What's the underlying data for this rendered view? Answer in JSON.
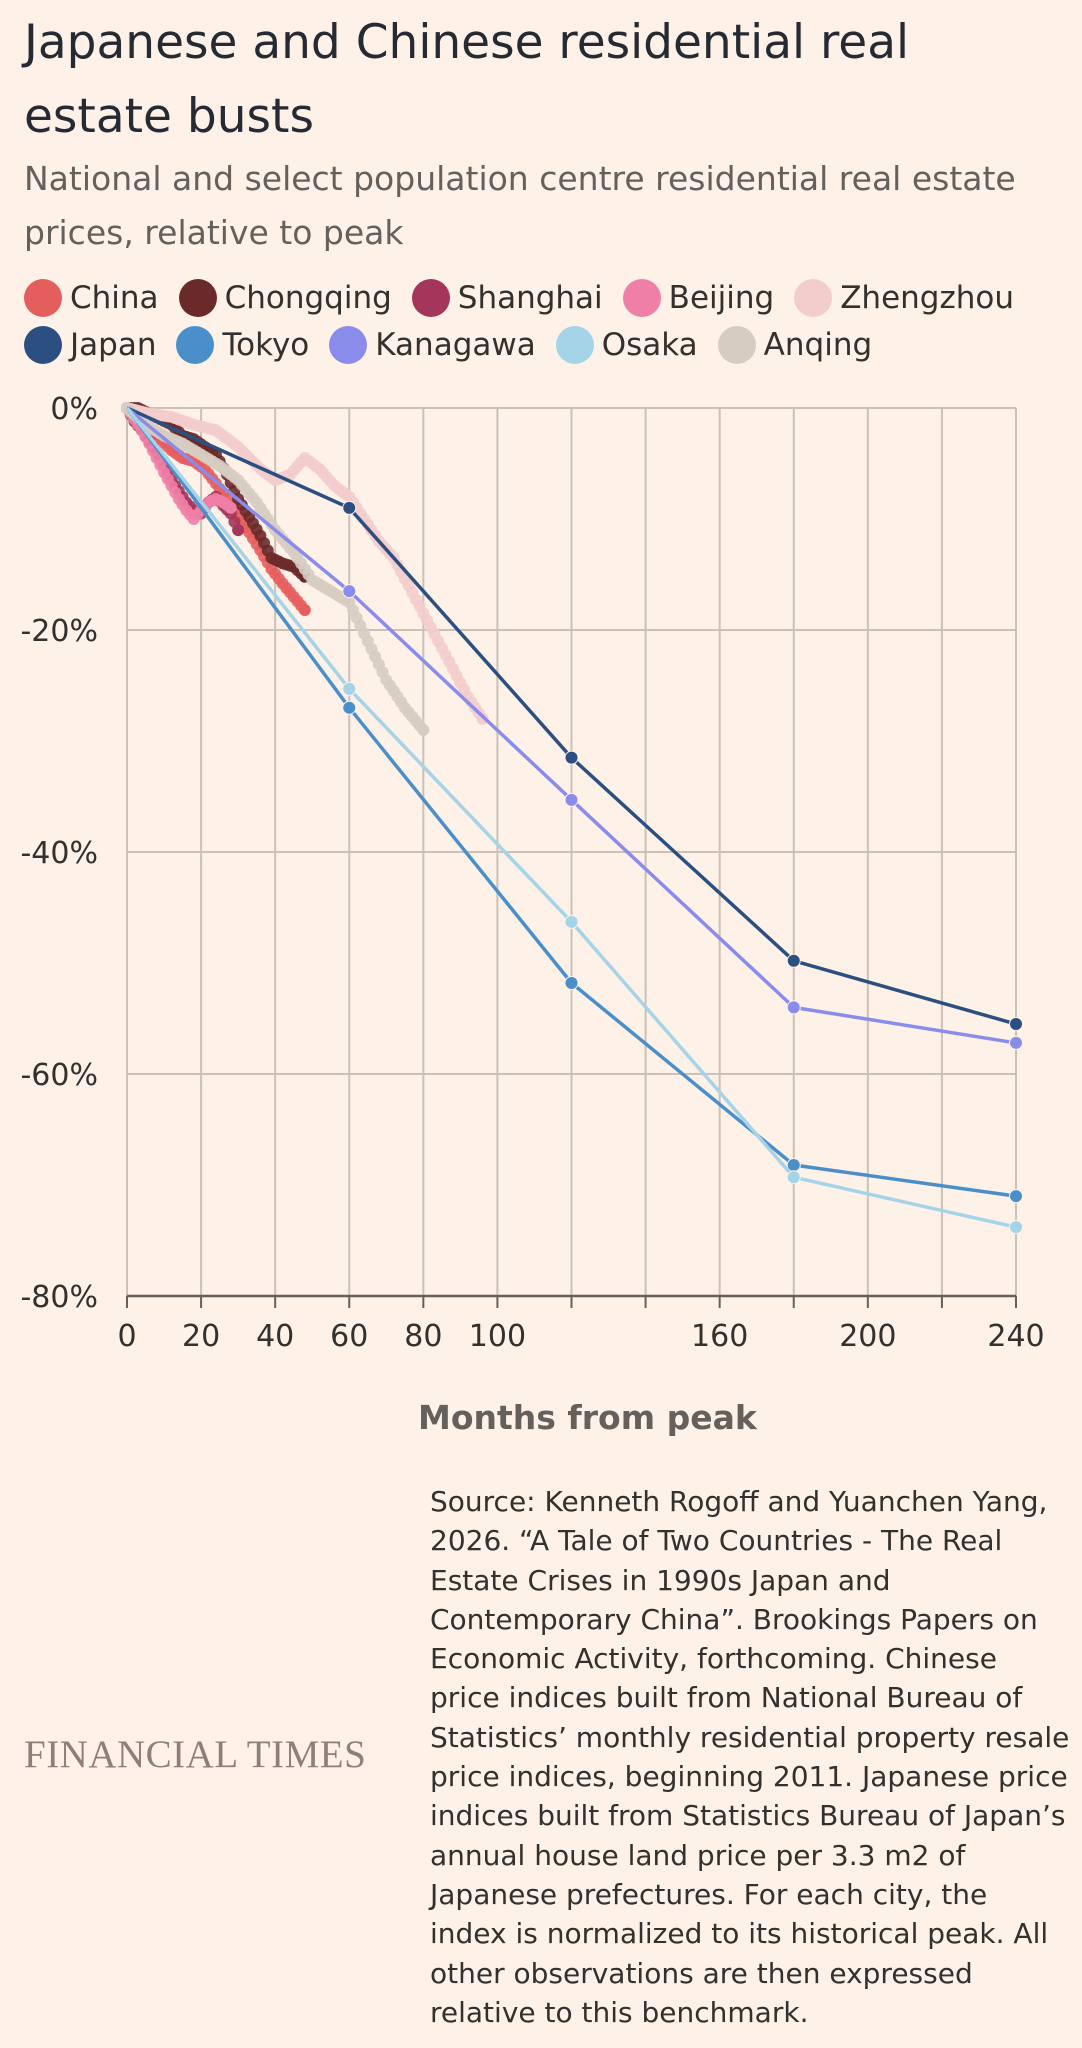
{
  "title": "Japanese and Chinese residential real estate busts",
  "subtitle": "National and select population centre residential real estate prices, relative to peak",
  "legend": [
    {
      "name": "China",
      "color": "#e55e5e"
    },
    {
      "name": "Chongqing",
      "color": "#6b2a2a"
    },
    {
      "name": "Shanghai",
      "color": "#a3365a"
    },
    {
      "name": "Beijing",
      "color": "#ef7fa6"
    },
    {
      "name": "Zhengzhou",
      "color": "#f3cccc"
    },
    {
      "name": "Japan",
      "color": "#2c4f82"
    },
    {
      "name": "Tokyo",
      "color": "#4a8fc9"
    },
    {
      "name": "Kanagawa",
      "color": "#8a8cec"
    },
    {
      "name": "Osaka",
      "color": "#a5d3e8"
    },
    {
      "name": "Anqing",
      "color": "#d7ccc2"
    }
  ],
  "xlabel": "Months from peak",
  "source": "Source: Kenneth Rogoff and Yuanchen Yang, 2026. “A Tale of Two Countries - The Real Estate Crises in 1990s Japan and Contemporary China”. Brookings Papers on Economic Activity, forthcoming. Chinese price indices built from National Bureau of Statistics’ monthly residential property resale price indices, beginning 2011. Japanese price indices built from Statistics Bureau of Japan’s annual house land price per 3.3 m2 of Japanese prefectures. For each city, the index is normalized to its historical peak. All other observations are then expressed relative to this benchmark.",
  "brand": "FINANCIAL TIMES",
  "chart_data": {
    "type": "line",
    "xlabel": "Months from peak",
    "ylabel": "",
    "xlim": [
      0,
      240
    ],
    "ylim": [
      -80,
      0
    ],
    "x_ticks": [
      0,
      20,
      40,
      60,
      80,
      100,
      160,
      200,
      240
    ],
    "x_grid": [
      0,
      20,
      40,
      60,
      80,
      100,
      120,
      140,
      160,
      180,
      200,
      220,
      240
    ],
    "y_ticks": [
      0,
      -20,
      -40,
      -60,
      -80
    ],
    "y_tick_labels": [
      "0%",
      "-20%",
      "-40%",
      "-60%",
      "-80%"
    ],
    "grid": true,
    "legend_position": "top",
    "series": [
      {
        "name": "Japan",
        "color": "#2c4f82",
        "style": "line-markers",
        "x": [
          0,
          60,
          120,
          180,
          240
        ],
        "y": [
          0,
          -9,
          -31.5,
          -49.8,
          -55.5
        ]
      },
      {
        "name": "Tokyo",
        "color": "#4a8fc9",
        "style": "line-markers",
        "x": [
          0,
          60,
          120,
          180,
          240
        ],
        "y": [
          0,
          -27,
          -51.8,
          -68.2,
          -71
        ]
      },
      {
        "name": "Kanagawa",
        "color": "#8a8cec",
        "style": "line-markers",
        "x": [
          0,
          60,
          120,
          180,
          240
        ],
        "y": [
          0,
          -16.5,
          -35.3,
          -54,
          -57.2
        ]
      },
      {
        "name": "Osaka",
        "color": "#a5d3e8",
        "style": "line-markers",
        "x": [
          0,
          60,
          120,
          180,
          240
        ],
        "y": [
          0,
          -25.3,
          -46.3,
          -69.3,
          -73.8
        ]
      },
      {
        "name": "China",
        "color": "#e55e5e",
        "style": "dots",
        "x": [
          0,
          3,
          6,
          9,
          12,
          15,
          18,
          21,
          24,
          27,
          30,
          33,
          36,
          39,
          42,
          45,
          48
        ],
        "y": [
          0,
          -1.5,
          -2.2,
          -2.8,
          -3.8,
          -4.5,
          -4.8,
          -5.5,
          -6.8,
          -8.2,
          -9.8,
          -11.2,
          -12.8,
          -14.5,
          -15.8,
          -17,
          -18.2
        ]
      },
      {
        "name": "Chongqing",
        "color": "#6b2a2a",
        "style": "dots",
        "x": [
          0,
          3,
          6,
          9,
          12,
          15,
          18,
          21,
          24,
          27,
          30,
          33,
          36,
          39,
          42,
          45,
          48
        ],
        "y": [
          0,
          0,
          -0.5,
          -1,
          -1.5,
          -2.5,
          -2.8,
          -3.5,
          -4.2,
          -6,
          -8.2,
          -9.8,
          -11.5,
          -13.5,
          -14,
          -14.3,
          -15.2
        ]
      },
      {
        "name": "Shanghai",
        "color": "#a3365a",
        "style": "dots",
        "x": [
          0,
          2,
          4,
          6,
          8,
          10,
          12,
          14,
          16,
          18,
          20,
          22,
          24,
          26,
          28,
          30
        ],
        "y": [
          0,
          -1.2,
          -2,
          -3,
          -4,
          -5.2,
          -6.5,
          -7.5,
          -8.5,
          -9.2,
          -9.5,
          -8.5,
          -8,
          -8.8,
          -9.5,
          -11
        ]
      },
      {
        "name": "Beijing",
        "color": "#ef7fa6",
        "style": "dots",
        "x": [
          0,
          2,
          4,
          6,
          8,
          10,
          12,
          14,
          16,
          18,
          20,
          22,
          24,
          26,
          28
        ],
        "y": [
          0,
          -1,
          -2,
          -3.2,
          -4.5,
          -5.8,
          -7,
          -8.2,
          -9.2,
          -10,
          -9.2,
          -8.5,
          -8.2,
          -8.5,
          -9
        ]
      },
      {
        "name": "Zhengzhou",
        "color": "#f3cccc",
        "style": "dots",
        "x": [
          0,
          6,
          12,
          18,
          24,
          30,
          36,
          40,
          44,
          48,
          52,
          56,
          60,
          64,
          68,
          72,
          76,
          80,
          84,
          88,
          92,
          96
        ],
        "y": [
          0,
          -0.5,
          -0.8,
          -1.5,
          -2,
          -3.5,
          -5.5,
          -6.5,
          -6,
          -4.5,
          -5.5,
          -7,
          -8,
          -10,
          -12,
          -13.5,
          -16,
          -18.5,
          -21,
          -23.5,
          -26,
          -28
        ]
      },
      {
        "name": "Anqing",
        "color": "#d7ccc2",
        "style": "dots",
        "x": [
          0,
          5,
          10,
          15,
          20,
          25,
          30,
          35,
          40,
          45,
          50,
          55,
          60,
          65,
          70,
          75,
          80
        ],
        "y": [
          0,
          -1.5,
          -2.5,
          -3.2,
          -4.2,
          -5.2,
          -6.5,
          -8.5,
          -11,
          -13,
          -15.5,
          -16.5,
          -17.5,
          -21,
          -24.5,
          -27,
          -29
        ]
      }
    ]
  }
}
